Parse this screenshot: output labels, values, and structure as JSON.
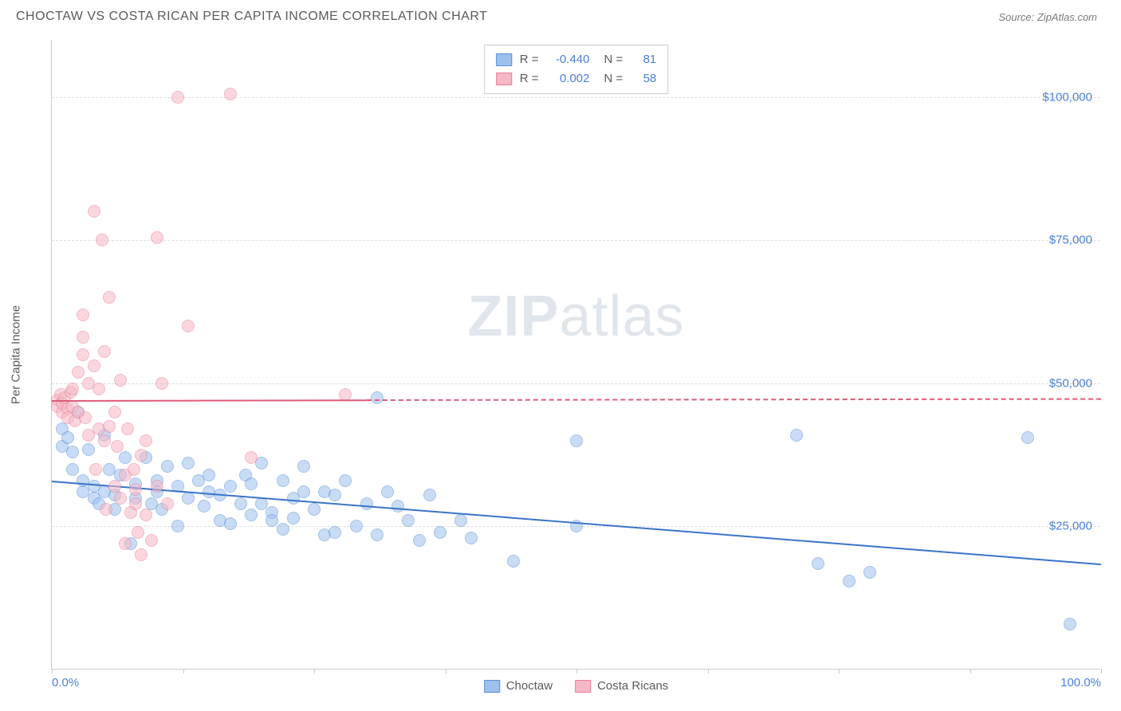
{
  "header": {
    "title": "CHOCTAW VS COSTA RICAN PER CAPITA INCOME CORRELATION CHART",
    "source": "Source: ZipAtlas.com"
  },
  "watermark": {
    "part1": "ZIP",
    "part2": "atlas"
  },
  "chart": {
    "type": "scatter",
    "y_axis_label": "Per Capita Income",
    "background_color": "#ffffff",
    "grid_color": "#dddddd",
    "axis_color": "#cccccc",
    "tick_label_color": "#4a7fd8",
    "xlim": [
      0,
      100
    ],
    "ylim": [
      0,
      110000
    ],
    "x_ticks": [
      0,
      12.5,
      25,
      37.5,
      50,
      62.5,
      75,
      87.5,
      100
    ],
    "x_tick_labels": {
      "0": "0.0%",
      "100": "100.0%"
    },
    "y_gridlines": [
      25000,
      50000,
      75000,
      100000
    ],
    "y_tick_labels": [
      "$25,000",
      "$50,000",
      "$75,000",
      "$100,000"
    ],
    "marker_radius": 8,
    "marker_opacity": 0.55,
    "series": [
      {
        "name": "Choctaw",
        "fill_color": "#9dc0ee",
        "stroke_color": "#5a8fd8",
        "trend_color": "#3a74c8",
        "R": "-0.440",
        "N": "81",
        "trend": {
          "x1": 0,
          "y1": 33000,
          "x2": 100,
          "y2": 18500
        },
        "points": [
          [
            1,
            42000
          ],
          [
            1,
            39000
          ],
          [
            1.5,
            40500
          ],
          [
            2,
            38000
          ],
          [
            2,
            35000
          ],
          [
            2.5,
            45000
          ],
          [
            3,
            33000
          ],
          [
            3,
            31000
          ],
          [
            3.5,
            38500
          ],
          [
            4,
            30000
          ],
          [
            4,
            32000
          ],
          [
            4.5,
            29000
          ],
          [
            5,
            41000
          ],
          [
            5,
            31000
          ],
          [
            5.5,
            35000
          ],
          [
            6,
            30500
          ],
          [
            6,
            28000
          ],
          [
            6.5,
            34000
          ],
          [
            7,
            37000
          ],
          [
            7.5,
            22000
          ],
          [
            8,
            32500
          ],
          [
            8,
            30000
          ],
          [
            9,
            37000
          ],
          [
            9.5,
            29000
          ],
          [
            10,
            33000
          ],
          [
            10,
            31000
          ],
          [
            10.5,
            28000
          ],
          [
            11,
            35500
          ],
          [
            12,
            25000
          ],
          [
            12,
            32000
          ],
          [
            13,
            30000
          ],
          [
            13,
            36000
          ],
          [
            14,
            33000
          ],
          [
            14.5,
            28500
          ],
          [
            15,
            31000
          ],
          [
            15,
            34000
          ],
          [
            16,
            30500
          ],
          [
            16,
            26000
          ],
          [
            17,
            32000
          ],
          [
            17,
            25500
          ],
          [
            18,
            29000
          ],
          [
            18.5,
            34000
          ],
          [
            19,
            27000
          ],
          [
            19,
            32500
          ],
          [
            20,
            36000
          ],
          [
            20,
            29000
          ],
          [
            21,
            27500
          ],
          [
            21,
            26000
          ],
          [
            22,
            33000
          ],
          [
            22,
            24500
          ],
          [
            23,
            30000
          ],
          [
            23,
            26500
          ],
          [
            24,
            35500
          ],
          [
            24,
            31000
          ],
          [
            25,
            28000
          ],
          [
            26,
            23500
          ],
          [
            26,
            31000
          ],
          [
            27,
            24000
          ],
          [
            27,
            30500
          ],
          [
            28,
            33000
          ],
          [
            29,
            25000
          ],
          [
            30,
            29000
          ],
          [
            31,
            47500
          ],
          [
            31,
            23500
          ],
          [
            32,
            31000
          ],
          [
            33,
            28500
          ],
          [
            34,
            26000
          ],
          [
            35,
            22500
          ],
          [
            36,
            30500
          ],
          [
            37,
            24000
          ],
          [
            39,
            26000
          ],
          [
            40,
            23000
          ],
          [
            44,
            19000
          ],
          [
            50,
            40000
          ],
          [
            50,
            25000
          ],
          [
            71,
            41000
          ],
          [
            73,
            18500
          ],
          [
            76,
            15500
          ],
          [
            78,
            17000
          ],
          [
            93,
            40500
          ],
          [
            97,
            8000
          ]
        ]
      },
      {
        "name": "Costa Ricans",
        "fill_color": "#f6b8c5",
        "stroke_color": "#e87f98",
        "trend_color": "#e05a7a",
        "R": "0.002",
        "N": "58",
        "trend": {
          "x1": 0,
          "y1": 47000,
          "x2": 30,
          "y2": 47100
        },
        "trend_dash": {
          "x1": 30,
          "y1": 47100,
          "x2": 100,
          "y2": 47300
        },
        "points": [
          [
            0.5,
            47000
          ],
          [
            0.5,
            46000
          ],
          [
            0.8,
            48000
          ],
          [
            1,
            45000
          ],
          [
            1,
            46500
          ],
          [
            1.2,
            47500
          ],
          [
            1.5,
            45500
          ],
          [
            1.5,
            44000
          ],
          [
            1.8,
            48500
          ],
          [
            2,
            46000
          ],
          [
            2,
            49000
          ],
          [
            2.2,
            43500
          ],
          [
            2.5,
            45000
          ],
          [
            2.5,
            52000
          ],
          [
            3,
            62000
          ],
          [
            3,
            55000
          ],
          [
            3,
            58000
          ],
          [
            3.2,
            44000
          ],
          [
            3.5,
            50000
          ],
          [
            3.5,
            41000
          ],
          [
            4,
            53000
          ],
          [
            4,
            80000
          ],
          [
            4.2,
            35000
          ],
          [
            4.5,
            49000
          ],
          [
            4.5,
            42000
          ],
          [
            4.8,
            75000
          ],
          [
            5,
            55500
          ],
          [
            5,
            40000
          ],
          [
            5.2,
            28000
          ],
          [
            5.5,
            65000
          ],
          [
            5.5,
            42500
          ],
          [
            6,
            45000
          ],
          [
            6,
            32000
          ],
          [
            6.2,
            39000
          ],
          [
            6.5,
            50500
          ],
          [
            6.5,
            30000
          ],
          [
            7,
            22000
          ],
          [
            7,
            34000
          ],
          [
            7.2,
            42000
          ],
          [
            7.5,
            27500
          ],
          [
            7.8,
            35000
          ],
          [
            8,
            31500
          ],
          [
            8,
            29000
          ],
          [
            8.2,
            24000
          ],
          [
            8.5,
            37500
          ],
          [
            8.5,
            20000
          ],
          [
            9,
            27000
          ],
          [
            9,
            40000
          ],
          [
            9.5,
            22500
          ],
          [
            10,
            75500
          ],
          [
            10,
            32000
          ],
          [
            10.5,
            50000
          ],
          [
            11,
            29000
          ],
          [
            12,
            100000
          ],
          [
            13,
            60000
          ],
          [
            17,
            100500
          ],
          [
            19,
            37000
          ],
          [
            28,
            48000
          ]
        ]
      }
    ],
    "legend_bottom": [
      {
        "label": "Choctaw",
        "fill": "#9dc0ee",
        "stroke": "#5a8fd8"
      },
      {
        "label": "Costa Ricans",
        "fill": "#f6b8c5",
        "stroke": "#e87f98"
      }
    ]
  }
}
